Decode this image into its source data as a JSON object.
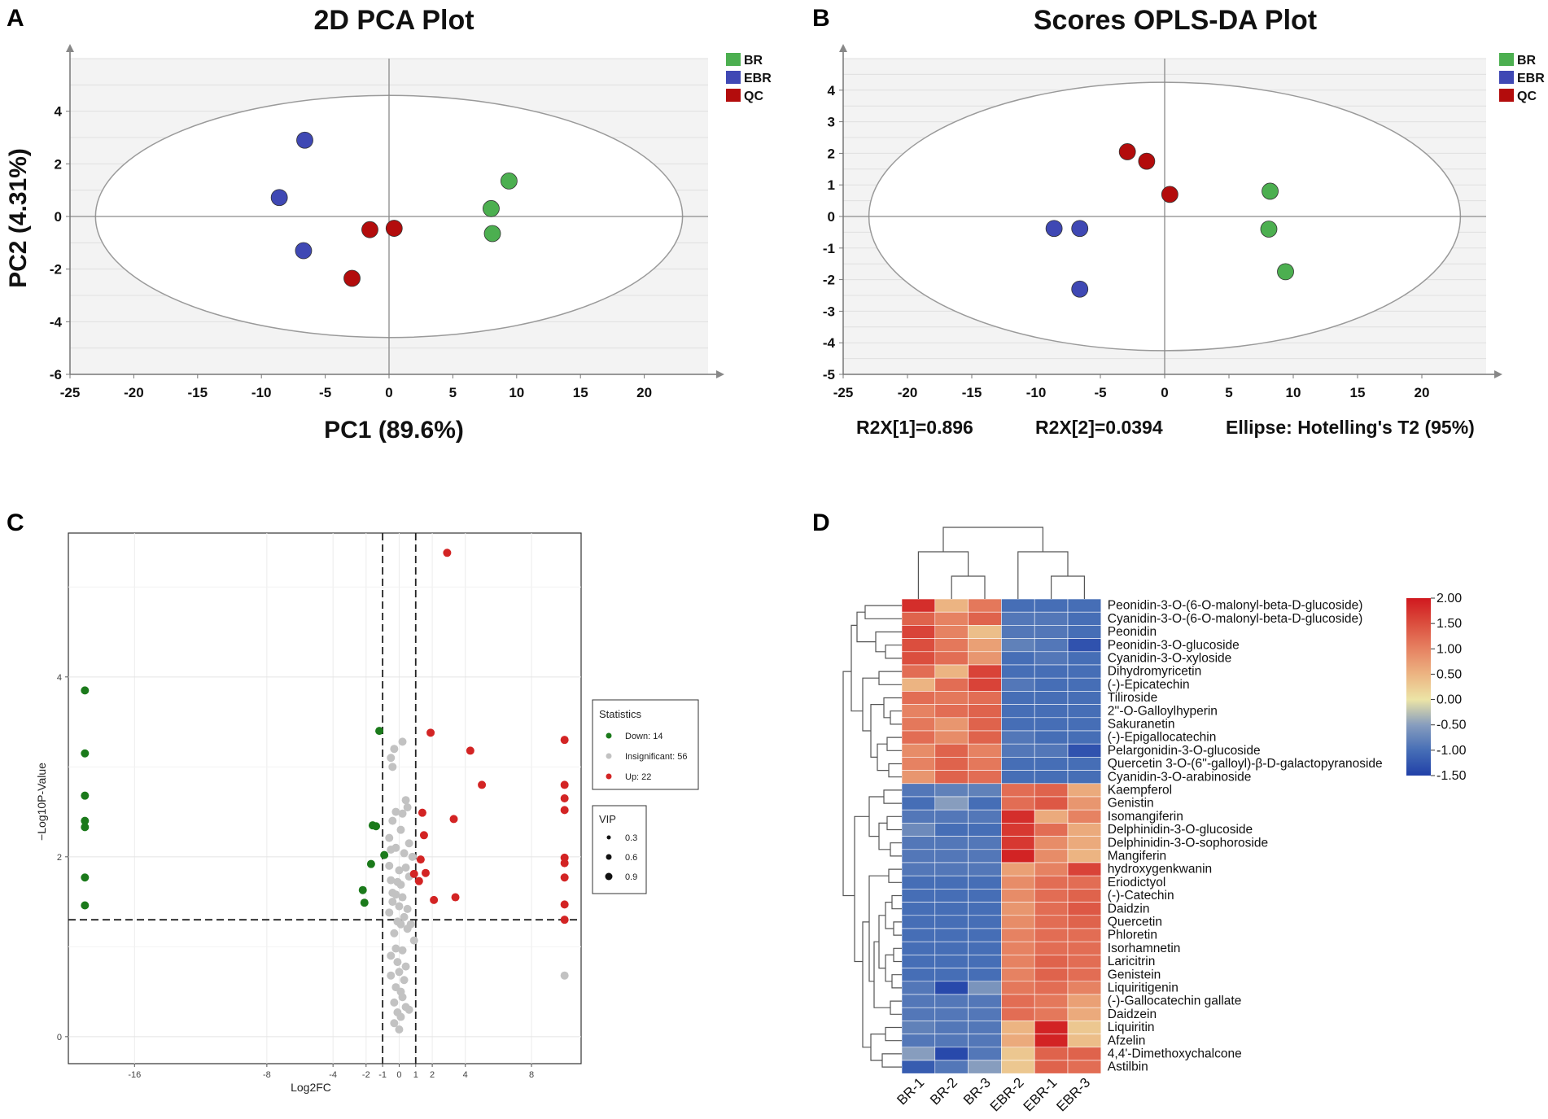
{
  "panels": {
    "a": "A",
    "b": "B",
    "c": "C",
    "d": "D"
  },
  "colors": {
    "BR": "#4caf50",
    "EBR": "#3f48b4",
    "QC": "#b30c0c",
    "down": "#1b7a1b",
    "insig": "#c2c2c2",
    "up": "#d32424"
  },
  "chart_data": [
    {
      "id": "pca",
      "type": "scatter",
      "title": "2D PCA Plot",
      "xlabel": "PC1 (89.6%)",
      "ylabel": "PC2 (4.31%)",
      "xlim": [
        -25,
        25
      ],
      "ylim": [
        -6,
        6
      ],
      "xticks": [
        -25,
        -20,
        -15,
        -10,
        -5,
        0,
        5,
        10,
        15,
        20
      ],
      "yticks": [
        -6,
        -4,
        -2,
        0,
        2,
        4
      ],
      "ellipse": {
        "cx": 0,
        "cy": 0,
        "rx": 23,
        "ry": 4.6
      },
      "legend": [
        "BR",
        "EBR",
        "QC"
      ],
      "series": [
        {
          "name": "BR",
          "points": [
            [
              9.4,
              1.35
            ],
            [
              8.0,
              0.3
            ],
            [
              8.1,
              -0.65
            ]
          ]
        },
        {
          "name": "EBR",
          "points": [
            [
              -6.6,
              2.9
            ],
            [
              -8.6,
              0.72
            ],
            [
              -6.7,
              -1.3
            ]
          ]
        },
        {
          "name": "QC",
          "points": [
            [
              -1.5,
              -0.5
            ],
            [
              0.4,
              -0.45
            ],
            [
              -2.9,
              -2.35
            ]
          ]
        }
      ]
    },
    {
      "id": "oplsda",
      "type": "scatter",
      "title": "Scores OPLS-DA Plot",
      "xlim": [
        -25,
        25
      ],
      "ylim": [
        -5,
        5
      ],
      "xticks": [
        -25,
        -20,
        -15,
        -10,
        -5,
        0,
        5,
        10,
        15,
        20
      ],
      "yticks": [
        -5,
        -4,
        -3,
        -2,
        -1,
        0,
        1,
        2,
        3,
        4
      ],
      "ellipse": {
        "cx": 0,
        "cy": 0,
        "rx": 23,
        "ry": 4.25
      },
      "legend": [
        "BR",
        "EBR",
        "QC"
      ],
      "footnotes": [
        "R2X[1]=0.896",
        "R2X[2]=0.0394",
        "Ellipse: Hotelling's T2 (95%)"
      ],
      "series": [
        {
          "name": "BR",
          "points": [
            [
              8.2,
              0.8
            ],
            [
              8.1,
              -0.4
            ],
            [
              9.4,
              -1.75
            ]
          ]
        },
        {
          "name": "EBR",
          "points": [
            [
              -8.6,
              -0.38
            ],
            [
              -6.6,
              -0.38
            ],
            [
              -6.6,
              -2.3
            ]
          ]
        },
        {
          "name": "QC",
          "points": [
            [
              -2.9,
              2.05
            ],
            [
              -1.4,
              1.75
            ],
            [
              0.4,
              0.7
            ]
          ]
        }
      ]
    },
    {
      "id": "volcano",
      "type": "scatter",
      "xlabel": "Log2FC",
      "ylabel": "−Log10P-Value",
      "xlim": [
        -20,
        11
      ],
      "ylim": [
        -0.3,
        5.6
      ],
      "xticks": [
        -16,
        -8,
        -4,
        -2,
        -1,
        0,
        1,
        2,
        4,
        8
      ],
      "yticks": [
        0,
        2,
        4
      ],
      "thresholds": {
        "fc": [
          -1,
          1
        ],
        "p": 1.3
      },
      "statistics_title": "Statistics",
      "statistics": [
        {
          "key": "down",
          "label": "Down: 14"
        },
        {
          "key": "insig",
          "label": "Insignificant: 56"
        },
        {
          "key": "up",
          "label": "Up: 22"
        }
      ],
      "vip_title": "VIP",
      "vip": [
        "0.3",
        "0.6",
        "0.9"
      ],
      "down": [
        [
          -19,
          3.85
        ],
        [
          -19,
          3.15
        ],
        [
          -19,
          2.68
        ],
        [
          -19,
          2.4
        ],
        [
          -19,
          2.33
        ],
        [
          -19,
          1.77
        ],
        [
          -19,
          1.46
        ],
        [
          -1.2,
          3.4
        ],
        [
          -1.6,
          2.35
        ],
        [
          -1.4,
          2.34
        ],
        [
          -0.9,
          2.02
        ],
        [
          -1.7,
          1.92
        ],
        [
          -2.2,
          1.63
        ],
        [
          -2.1,
          1.49
        ]
      ],
      "up": [
        [
          2.9,
          5.38
        ],
        [
          1.9,
          3.38
        ],
        [
          4.3,
          3.18
        ],
        [
          5.0,
          2.8
        ],
        [
          1.4,
          2.49
        ],
        [
          3.3,
          2.42
        ],
        [
          1.5,
          2.24
        ],
        [
          1.6,
          1.82
        ],
        [
          1.2,
          1.73
        ],
        [
          3.4,
          1.55
        ],
        [
          2.1,
          1.52
        ],
        [
          10.0,
          3.3
        ],
        [
          10.0,
          2.8
        ],
        [
          10.0,
          2.65
        ],
        [
          10.0,
          2.52
        ],
        [
          10.0,
          1.99
        ],
        [
          10.0,
          1.93
        ],
        [
          10.0,
          1.77
        ],
        [
          10.0,
          1.47
        ],
        [
          10.0,
          1.3
        ],
        [
          1.3,
          1.97
        ],
        [
          0.9,
          1.81
        ]
      ],
      "insig": [
        [
          0.2,
          3.28
        ],
        [
          -0.3,
          3.2
        ],
        [
          -0.4,
          3.0
        ],
        [
          -0.5,
          3.1
        ],
        [
          0.4,
          2.63
        ],
        [
          0.2,
          2.48
        ],
        [
          -0.2,
          2.5
        ],
        [
          -0.4,
          2.4
        ],
        [
          0.5,
          2.55
        ],
        [
          -0.6,
          2.21
        ],
        [
          0.1,
          2.3
        ],
        [
          0.6,
          2.15
        ],
        [
          -0.5,
          2.08
        ],
        [
          -0.2,
          2.1
        ],
        [
          0.3,
          2.04
        ],
        [
          0.8,
          2.0
        ],
        [
          -0.6,
          1.9
        ],
        [
          0.0,
          1.85
        ],
        [
          0.4,
          1.88
        ],
        [
          -0.1,
          1.72
        ],
        [
          0.1,
          1.69
        ],
        [
          -0.5,
          1.74
        ],
        [
          0.6,
          1.78
        ],
        [
          -0.2,
          1.58
        ],
        [
          0.2,
          1.55
        ],
        [
          -0.4,
          1.5
        ],
        [
          0.0,
          1.45
        ],
        [
          0.5,
          1.42
        ],
        [
          -0.6,
          1.38
        ],
        [
          0.3,
          1.33
        ],
        [
          -0.1,
          1.28
        ],
        [
          0.1,
          1.25
        ],
        [
          0.5,
          1.2
        ],
        [
          -0.3,
          1.15
        ],
        [
          0.9,
          1.07
        ],
        [
          -0.2,
          0.98
        ],
        [
          0.2,
          0.96
        ],
        [
          -0.5,
          0.9
        ],
        [
          -0.1,
          0.83
        ],
        [
          0.4,
          0.78
        ],
        [
          0.0,
          0.72
        ],
        [
          0.3,
          0.63
        ],
        [
          -0.2,
          0.55
        ],
        [
          0.1,
          0.5
        ],
        [
          0.2,
          0.44
        ],
        [
          -0.3,
          0.38
        ],
        [
          0.4,
          0.33
        ],
        [
          -0.1,
          0.27
        ],
        [
          0.1,
          0.22
        ],
        [
          -0.3,
          0.15
        ],
        [
          0.0,
          0.08
        ],
        [
          0.6,
          0.3
        ],
        [
          -0.5,
          0.68
        ],
        [
          0.7,
          1.25
        ],
        [
          10.0,
          0.68
        ],
        [
          -0.4,
          1.6
        ]
      ]
    },
    {
      "id": "heatmap",
      "type": "heatmap",
      "columns": [
        "BR-1",
        "BR-2",
        "BR-3",
        "EBR-2",
        "EBR-1",
        "EBR-3"
      ],
      "rows": [
        "Peonidin-3-O-(6-O-malonyl-beta-D-glucoside)",
        "Cyanidin-3-O-(6-O-malonyl-beta-D-glucoside)",
        "Peonidin",
        "Peonidin-3-O-glucoside",
        "Cyanidin-3-O-xyloside",
        "Dihydromyricetin",
        "(-)-Epicatechin",
        "Tiliroside",
        "2''-O-Galloylhyperin",
        "Sakuranetin",
        "(-)-Epigallocatechin",
        "Pelargonidin-3-O-glucoside",
        "Quercetin 3-O-(6''-galloyl)-β-D-galactopyranoside",
        "Cyanidin-3-O-arabinoside",
        "Kaempferol",
        "Genistin",
        "Isomangiferin",
        "Delphinidin-3-O-glucoside",
        "Delphinidin-3-O-sophoroside",
        "Mangiferin",
        "hydroxygenkwanin",
        "Eriodictyol",
        "(-)-Catechin",
        "Daidzin",
        "Quercetin",
        "Phloretin",
        "Isorhamnetin",
        "Laricitrin",
        "Genistein",
        "Liquiritigenin",
        "(-)-Gallocatechin gallate",
        "Daidzein",
        "Liquiritin",
        "Afzelin",
        "4,4'-Dimethoxychalcone",
        "Astilbin"
      ],
      "values": [
        [
          1.8,
          0.5,
          1.1,
          -1.0,
          -1.0,
          -1.0
        ],
        [
          1.3,
          1.0,
          1.3,
          -0.9,
          -0.9,
          -1.0
        ],
        [
          1.6,
          1.0,
          0.4,
          -0.9,
          -0.9,
          -1.0
        ],
        [
          1.5,
          1.1,
          0.7,
          -0.8,
          -0.9,
          -1.3
        ],
        [
          1.5,
          1.2,
          0.8,
          -1.0,
          -0.9,
          -1.0
        ],
        [
          1.2,
          0.5,
          1.6,
          -1.0,
          -1.0,
          -1.0
        ],
        [
          0.5,
          1.2,
          1.6,
          -0.9,
          -1.0,
          -1.0
        ],
        [
          1.2,
          1.1,
          1.2,
          -1.0,
          -1.0,
          -1.0
        ],
        [
          1.0,
          1.2,
          1.3,
          -1.0,
          -1.0,
          -1.0
        ],
        [
          1.1,
          0.8,
          1.3,
          -1.0,
          -1.0,
          -1.0
        ],
        [
          1.2,
          0.9,
          1.3,
          -0.9,
          -1.0,
          -1.0
        ],
        [
          0.9,
          1.3,
          1.0,
          -0.9,
          -0.9,
          -1.3
        ],
        [
          1.0,
          1.3,
          1.1,
          -1.0,
          -1.0,
          -1.0
        ],
        [
          0.8,
          1.3,
          1.2,
          -1.0,
          -1.0,
          -1.0
        ],
        [
          -0.9,
          -0.8,
          -0.8,
          1.2,
          1.3,
          0.6
        ],
        [
          -1.0,
          -0.5,
          -1.0,
          1.2,
          1.4,
          0.8
        ],
        [
          -0.9,
          -0.9,
          -0.9,
          1.8,
          0.6,
          1.0
        ],
        [
          -0.7,
          -1.0,
          -1.0,
          1.7,
          1.2,
          0.6
        ],
        [
          -0.9,
          -0.9,
          -0.9,
          1.7,
          0.9,
          0.6
        ],
        [
          -0.9,
          -0.9,
          -0.9,
          1.9,
          0.9,
          0.5
        ],
        [
          -0.9,
          -0.9,
          -0.9,
          0.7,
          1.0,
          1.6
        ],
        [
          -1.0,
          -1.0,
          -1.0,
          0.9,
          1.2,
          1.2
        ],
        [
          -1.0,
          -1.0,
          -1.0,
          0.9,
          1.2,
          1.3
        ],
        [
          -1.0,
          -1.0,
          -1.0,
          0.8,
          1.2,
          1.4
        ],
        [
          -1.0,
          -1.0,
          -1.0,
          0.9,
          1.2,
          1.3
        ],
        [
          -1.0,
          -1.0,
          -1.0,
          1.0,
          1.2,
          1.2
        ],
        [
          -1.0,
          -1.0,
          -1.0,
          1.0,
          1.2,
          1.2
        ],
        [
          -1.0,
          -1.0,
          -1.0,
          1.0,
          1.3,
          1.2
        ],
        [
          -1.0,
          -1.0,
          -1.0,
          1.0,
          1.3,
          1.2
        ],
        [
          -0.9,
          -1.4,
          -0.6,
          1.1,
          1.2,
          1.0
        ],
        [
          -0.9,
          -0.9,
          -0.9,
          1.2,
          1.1,
          0.7
        ],
        [
          -0.9,
          -0.9,
          -0.9,
          1.2,
          1.1,
          0.6
        ],
        [
          -0.8,
          -0.9,
          -0.9,
          0.5,
          1.9,
          0.3
        ],
        [
          -0.9,
          -0.9,
          -0.9,
          0.6,
          1.9,
          0.4
        ],
        [
          -0.5,
          -1.4,
          -0.9,
          0.3,
          1.3,
          1.3
        ],
        [
          -1.2,
          -0.9,
          -0.5,
          0.3,
          1.3,
          1.2
        ]
      ],
      "colorbar": {
        "min": -1.5,
        "max": 2.0,
        "ticks": [
          "2.00",
          "1.50",
          "1.00",
          "0.50",
          "0.00",
          "-0.50",
          "-1.00",
          "-1.50"
        ]
      }
    }
  ]
}
